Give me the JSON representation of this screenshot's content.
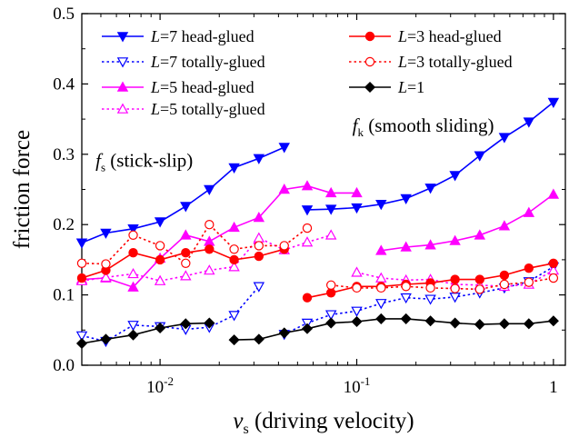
{
  "chart_data": {
    "type": "line",
    "xscale": "log",
    "xlim": [
      0.004,
      1.15
    ],
    "ylim": [
      0.0,
      0.5
    ],
    "xlabel": {
      "main": "v",
      "sub": "s",
      "rest": " (driving velocity)"
    },
    "ylabel": "friction force",
    "x_ticks": [
      {
        "value": 0.01,
        "base": "10",
        "exp": "-2"
      },
      {
        "value": 0.1,
        "base": "10",
        "exp": "-1"
      },
      {
        "value": 1,
        "base": "1",
        "exp": ""
      }
    ],
    "y_ticks": [
      "0.0",
      "0.1",
      "0.2",
      "0.3",
      "0.4",
      "0.5"
    ],
    "annotations": [
      {
        "id": "stick-slip",
        "main": "f",
        "sub": "s",
        "rest": " (stick-slip)",
        "x": 0.0047,
        "y": 0.282
      },
      {
        "id": "smooth-sliding",
        "main": "f",
        "sub": "k",
        "rest": " (smooth sliding)",
        "x": 0.095,
        "y": 0.332
      }
    ],
    "legend": [
      {
        "series": 0,
        "italic": "L",
        "rest": "=7  head-glued"
      },
      {
        "series": 1,
        "italic": "L",
        "rest": "=7  totally-glued"
      },
      {
        "series": 2,
        "italic": "L",
        "rest": "=5  head-glued"
      },
      {
        "series": 3,
        "italic": "L",
        "rest": "=5  totally-glued"
      },
      {
        "series": 4,
        "italic": "L",
        "rest": "=3  head-glued"
      },
      {
        "series": 5,
        "italic": "L",
        "rest": "=3  totally-glued"
      },
      {
        "series": 6,
        "italic": "L",
        "rest": "=1"
      }
    ],
    "series": [
      {
        "name": "L=7 head-glued",
        "color": "#0000ff",
        "marker": "triangle-down",
        "filled": true,
        "dash": "solid",
        "segments": [
          [
            [
              0.004,
              0.174
            ],
            [
              0.0053,
              0.188
            ],
            [
              0.0073,
              0.194
            ],
            [
              0.01,
              0.204
            ],
            [
              0.0135,
              0.226
            ],
            [
              0.0178,
              0.25
            ],
            [
              0.0238,
              0.281
            ],
            [
              0.0318,
              0.294
            ],
            [
              0.0428,
              0.31
            ]
          ],
          [
            [
              0.056,
              0.221
            ],
            [
              0.074,
              0.222
            ],
            [
              0.1,
              0.224
            ],
            [
              0.133,
              0.229
            ],
            [
              0.178,
              0.237
            ],
            [
              0.237,
              0.252
            ],
            [
              0.316,
              0.27
            ],
            [
              0.422,
              0.298
            ],
            [
              0.563,
              0.324
            ],
            [
              0.75,
              0.346
            ],
            [
              1.0,
              0.374
            ]
          ]
        ]
      },
      {
        "name": "L=7 totally-glued",
        "color": "#0000ff",
        "marker": "triangle-down",
        "filled": false,
        "dash": "dot",
        "segments": [
          [
            [
              0.004,
              0.042
            ],
            [
              0.0053,
              0.034
            ],
            [
              0.0073,
              0.057
            ],
            [
              0.01,
              0.055
            ],
            [
              0.0135,
              0.051
            ],
            [
              0.0178,
              0.054
            ],
            [
              0.0238,
              0.071
            ],
            [
              0.0318,
              0.112
            ]
          ],
          [
            [
              0.0428,
              0.044
            ],
            [
              0.056,
              0.06
            ],
            [
              0.074,
              0.072
            ],
            [
              0.1,
              0.077
            ],
            [
              0.133,
              0.088
            ],
            [
              0.178,
              0.096
            ],
            [
              0.237,
              0.094
            ],
            [
              0.316,
              0.097
            ],
            [
              0.422,
              0.103
            ],
            [
              0.563,
              0.11
            ],
            [
              0.75,
              0.119
            ],
            [
              1.0,
              0.14
            ]
          ]
        ]
      },
      {
        "name": "L=5 head-glued",
        "color": "#ff00ff",
        "marker": "triangle-up",
        "filled": true,
        "dash": "solid",
        "segments": [
          [
            [
              0.004,
              0.122
            ],
            [
              0.0053,
              0.124
            ],
            [
              0.0073,
              0.111
            ],
            [
              0.01,
              0.152
            ],
            [
              0.0135,
              0.185
            ],
            [
              0.0178,
              0.176
            ],
            [
              0.0238,
              0.196
            ],
            [
              0.0318,
              0.21
            ],
            [
              0.0428,
              0.25
            ],
            [
              0.056,
              0.255
            ],
            [
              0.074,
              0.245
            ],
            [
              0.1,
              0.245
            ]
          ],
          [
            [
              0.133,
              0.163
            ],
            [
              0.178,
              0.168
            ],
            [
              0.237,
              0.171
            ],
            [
              0.316,
              0.177
            ],
            [
              0.422,
              0.185
            ],
            [
              0.563,
              0.198
            ],
            [
              0.75,
              0.217
            ],
            [
              1.0,
              0.243
            ]
          ]
        ]
      },
      {
        "name": "L=5 totally-glued",
        "color": "#ff00ff",
        "marker": "triangle-up",
        "filled": false,
        "dash": "dot",
        "segments": [
          [
            [
              0.004,
              0.12
            ],
            [
              0.0053,
              0.125
            ],
            [
              0.0073,
              0.13
            ],
            [
              0.01,
              0.12
            ],
            [
              0.0135,
              0.127
            ],
            [
              0.0178,
              0.135
            ],
            [
              0.0238,
              0.14
            ],
            [
              0.0318,
              0.181
            ],
            [
              0.0428,
              0.164
            ],
            [
              0.056,
              0.175
            ],
            [
              0.074,
              0.185
            ]
          ],
          [
            [
              0.1,
              0.132
            ],
            [
              0.133,
              0.124
            ],
            [
              0.178,
              0.121
            ],
            [
              0.237,
              0.122
            ],
            [
              0.316,
              0.115
            ],
            [
              0.422,
              0.114
            ],
            [
              0.563,
              0.112
            ],
            [
              0.75,
              0.115
            ],
            [
              1.0,
              0.135
            ]
          ]
        ]
      },
      {
        "name": "L=3 head-glued",
        "color": "#ff0000",
        "marker": "circle",
        "filled": true,
        "dash": "solid",
        "segments": [
          [
            [
              0.004,
              0.124
            ],
            [
              0.0053,
              0.135
            ],
            [
              0.0073,
              0.16
            ],
            [
              0.01,
              0.15
            ],
            [
              0.0135,
              0.16
            ],
            [
              0.0178,
              0.165
            ],
            [
              0.0238,
              0.15
            ],
            [
              0.0318,
              0.155
            ],
            [
              0.0428,
              0.165
            ]
          ],
          [
            [
              0.056,
              0.096
            ],
            [
              0.074,
              0.103
            ],
            [
              0.1,
              0.112
            ],
            [
              0.133,
              0.112
            ],
            [
              0.178,
              0.115
            ],
            [
              0.237,
              0.117
            ],
            [
              0.316,
              0.122
            ],
            [
              0.422,
              0.122
            ],
            [
              0.563,
              0.128
            ],
            [
              0.75,
              0.138
            ],
            [
              1.0,
              0.145
            ]
          ]
        ]
      },
      {
        "name": "L=3 totally-glued",
        "color": "#ff0000",
        "marker": "circle",
        "filled": false,
        "dash": "dot",
        "segments": [
          [
            [
              0.004,
              0.145
            ],
            [
              0.0053,
              0.144
            ],
            [
              0.0073,
              0.185
            ],
            [
              0.01,
              0.17
            ],
            [
              0.0135,
              0.145
            ],
            [
              0.0178,
              0.2
            ],
            [
              0.0238,
              0.165
            ],
            [
              0.0318,
              0.17
            ],
            [
              0.0428,
              0.17
            ],
            [
              0.056,
              0.195
            ]
          ],
          [
            [
              0.074,
              0.114
            ],
            [
              0.1,
              0.11
            ],
            [
              0.133,
              0.11
            ],
            [
              0.178,
              0.112
            ],
            [
              0.237,
              0.11
            ],
            [
              0.316,
              0.109
            ],
            [
              0.422,
              0.108
            ],
            [
              0.563,
              0.115
            ],
            [
              0.75,
              0.118
            ],
            [
              1.0,
              0.124
            ]
          ]
        ]
      },
      {
        "name": "L=1",
        "color": "#000000",
        "marker": "diamond",
        "filled": true,
        "dash": "solid",
        "segments": [
          [
            [
              0.004,
              0.031
            ],
            [
              0.0053,
              0.037
            ],
            [
              0.0073,
              0.043
            ],
            [
              0.01,
              0.053
            ],
            [
              0.0135,
              0.059
            ],
            [
              0.0178,
              0.06
            ]
          ],
          [
            [
              0.0238,
              0.036
            ],
            [
              0.0318,
              0.037
            ],
            [
              0.0428,
              0.046
            ],
            [
              0.056,
              0.052
            ],
            [
              0.074,
              0.06
            ],
            [
              0.1,
              0.062
            ],
            [
              0.133,
              0.066
            ],
            [
              0.178,
              0.066
            ],
            [
              0.237,
              0.063
            ],
            [
              0.316,
              0.06
            ],
            [
              0.422,
              0.058
            ],
            [
              0.563,
              0.059
            ],
            [
              0.75,
              0.059
            ],
            [
              1.0,
              0.063
            ]
          ]
        ]
      }
    ]
  }
}
